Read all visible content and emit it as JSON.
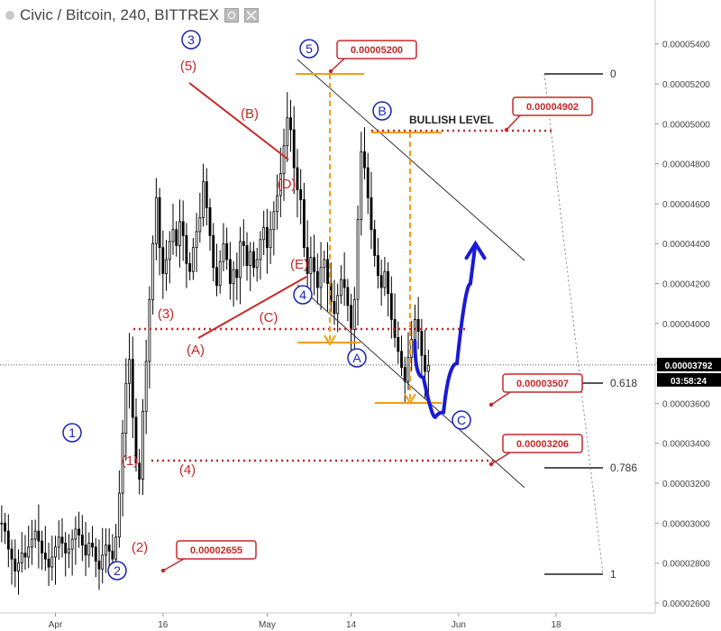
{
  "header": {
    "title": "Civic / Bitcoin, 240, BITTREX",
    "settings_icon": "gear-icon",
    "close_icon": "close-icon"
  },
  "colors": {
    "red": "#c62828",
    "blue": "#1a23b5",
    "orange": "#f39c12",
    "candle": "#000000",
    "projection": "#1a1ad6",
    "price_tag": "#000000"
  },
  "chart_data": {
    "type": "candlestick",
    "title": "Civic / Bitcoin, 240, BITTREX",
    "y_axis": {
      "ylim": [
        2.55e-05,
        5.62e-05
      ],
      "ticks": [
        "0.00005400",
        "0.00005200",
        "0.00005000",
        "0.00004800",
        "0.00004600",
        "0.00004400",
        "0.00004200",
        "0.00004000",
        "0.00003800",
        "0.00003600",
        "0.00003400",
        "0.00003200",
        "0.00003000",
        "0.00002800",
        "0.00002600"
      ]
    },
    "x_axis": {
      "ticks": [
        {
          "label": "Apr",
          "i": 16
        },
        {
          "label": "16",
          "i": 48
        },
        {
          "label": "May",
          "i": 79
        },
        {
          "label": "14",
          "i": 104
        },
        {
          "label": "Jun",
          "i": 136
        },
        {
          "label": "18",
          "i": 165
        }
      ],
      "n_slots": 195
    },
    "price_series_close": [
      3e-05,
      2.96e-05,
      2.87e-05,
      2.82e-05,
      2.76e-05,
      2.8e-05,
      2.85e-05,
      2.83e-05,
      2.88e-05,
      2.92e-05,
      2.96e-05,
      2.91e-05,
      2.85e-05,
      2.82e-05,
      2.78e-05,
      2.83e-05,
      2.88e-05,
      2.93e-05,
      2.9e-05,
      2.85e-05,
      2.87e-05,
      2.92e-05,
      2.97e-05,
      2.94e-05,
      2.89e-05,
      2.84e-05,
      2.9e-05,
      2.88e-05,
      2.81e-05,
      2.77e-05,
      2.84e-05,
      2.89e-05,
      2.86e-05,
      2.82e-05,
      2.93e-05,
      3.15e-05,
      3.45e-05,
      3.7e-05,
      3.82e-05,
      3.53e-05,
      3.3e-05,
      3.22e-05,
      3.56e-05,
      3.81e-05,
      4.12e-05,
      4.4e-05,
      4.63e-05,
      4.38e-05,
      4.25e-05,
      4.32e-05,
      4.41e-05,
      4.47e-05,
      4.39e-05,
      4.51e-05,
      4.44e-05,
      4.3e-05,
      4.26e-05,
      4.38e-05,
      4.46e-05,
      4.53e-05,
      4.71e-05,
      4.58e-05,
      4.44e-05,
      4.28e-05,
      4.19e-05,
      4.31e-05,
      4.4e-05,
      4.32e-05,
      4.2e-05,
      4.27e-05,
      4.23e-05,
      4.41e-05,
      4.39e-05,
      4.29e-05,
      4.36e-05,
      4.28e-05,
      4.32e-05,
      4.42e-05,
      4.48e-05,
      4.38e-05,
      4.47e-05,
      4.56e-05,
      4.64e-05,
      4.75e-05,
      4.89e-05,
      5.03e-05,
      4.97e-05,
      4.78e-05,
      4.67e-05,
      4.62e-05,
      4.38e-05,
      4.25e-05,
      4.33e-05,
      4.26e-05,
      4.18e-05,
      4.28e-05,
      4.32e-05,
      4.2e-05,
      4.11e-05,
      4.05e-05,
      4.14e-05,
      4.22e-05,
      4.18e-05,
      4.09e-05,
      3.97e-05,
      4.12e-05,
      4.52e-05,
      4.86e-05,
      4.78e-05,
      4.63e-05,
      4.47e-05,
      4.34e-05,
      4.24e-05,
      4.18e-05,
      4.26e-05,
      4.15e-05,
      4.02e-05,
      3.93e-05,
      3.86e-05,
      3.78e-05,
      3.71e-05,
      3.83e-05,
      3.92e-05,
      4.02e-05,
      3.96e-05,
      3.84e-05,
      3.76e-05,
      3.79e-05
    ],
    "projection_path": [
      {
        "i": 123,
        "y": 3.91e-05
      },
      {
        "i": 128,
        "y": 3.55e-05
      },
      {
        "i": 130,
        "y": 3.51e-05
      },
      {
        "i": 133,
        "y": 3.6e-05
      },
      {
        "i": 138,
        "y": 4e-05
      },
      {
        "i": 141,
        "y": 4.4e-05
      }
    ],
    "current_price": {
      "value": "0.00003792",
      "countdown": "03:58:24"
    },
    "price_callouts": [
      {
        "label": "0.00005200"
      },
      {
        "label": "0.00004902"
      },
      {
        "label": "0.00003507"
      },
      {
        "label": "0.00003206"
      },
      {
        "label": "0.00002655"
      }
    ],
    "fib_levels": [
      {
        "label": "0"
      },
      {
        "label": "0.618"
      },
      {
        "label": "0.786"
      },
      {
        "label": "1"
      }
    ],
    "annotations": {
      "bullish_level": "BULLISH LEVEL",
      "blue_circled": [
        "1",
        "2",
        "3",
        "4",
        "5",
        "A",
        "B",
        "C"
      ],
      "red_parens": [
        "(1)",
        "(2)",
        "(3)",
        "(4)",
        "(5)",
        "(A)",
        "(B)",
        "(C)",
        "(D)",
        "(E)"
      ]
    }
  }
}
